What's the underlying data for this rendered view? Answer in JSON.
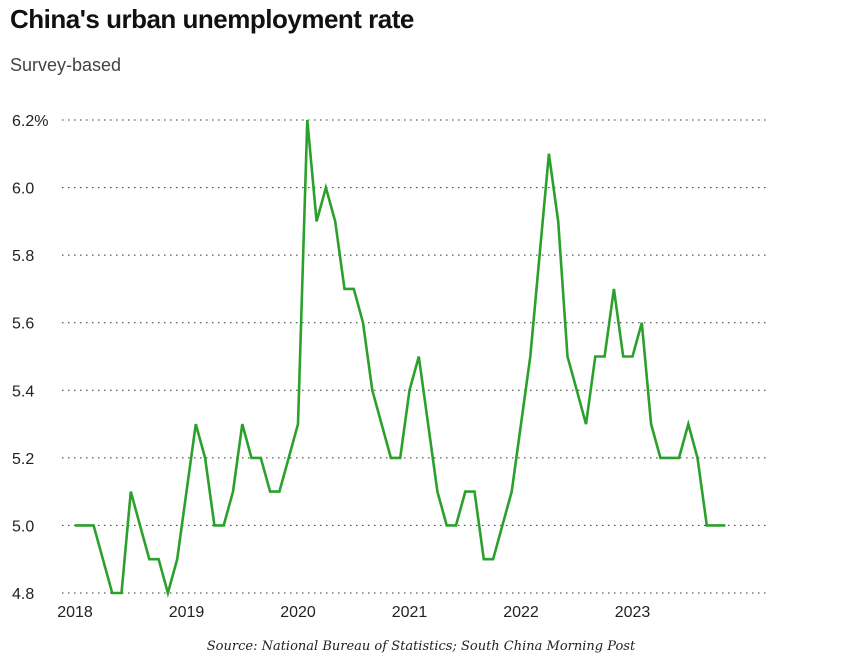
{
  "chart_data": {
    "type": "line",
    "title": "China's urban unemployment rate",
    "subtitle": "Survey-based",
    "source": "Source: National Bureau of Statistics; South China Morning Post",
    "xlabel": "",
    "ylabel": "",
    "ylim": [
      4.8,
      6.2
    ],
    "yticks": [
      {
        "value": 4.8,
        "label": "4.8"
      },
      {
        "value": 5.0,
        "label": "5.0"
      },
      {
        "value": 5.2,
        "label": "5.2"
      },
      {
        "value": 5.4,
        "label": "5.4"
      },
      {
        "value": 5.6,
        "label": "5.6"
      },
      {
        "value": 5.8,
        "label": "5.8"
      },
      {
        "value": 6.0,
        "label": "6.0"
      },
      {
        "value": 6.2,
        "label": "6.2%"
      }
    ],
    "xticks": [
      "2018",
      "2019",
      "2020",
      "2021",
      "2022",
      "2023"
    ],
    "series": [
      {
        "name": "Urban unemployment rate",
        "color": "#2ca02c",
        "start": "2018-01",
        "values": [
          5.0,
          5.0,
          5.0,
          4.9,
          4.8,
          4.8,
          5.1,
          5.0,
          4.9,
          4.9,
          4.8,
          4.9,
          5.1,
          5.3,
          5.2,
          5.0,
          5.0,
          5.1,
          5.3,
          5.2,
          5.2,
          5.1,
          5.1,
          5.2,
          5.3,
          6.2,
          5.9,
          6.0,
          5.9,
          5.7,
          5.7,
          5.6,
          5.4,
          5.3,
          5.2,
          5.2,
          5.4,
          5.5,
          5.3,
          5.1,
          5.0,
          5.0,
          5.1,
          5.1,
          4.9,
          4.9,
          5.0,
          5.1,
          5.3,
          5.5,
          5.8,
          6.1,
          5.9,
          5.5,
          5.4,
          5.3,
          5.5,
          5.5,
          5.7,
          5.5,
          5.5,
          5.6,
          5.3,
          5.2,
          5.2,
          5.2,
          5.3,
          5.2,
          5.0,
          5.0,
          5.0
        ]
      }
    ]
  }
}
